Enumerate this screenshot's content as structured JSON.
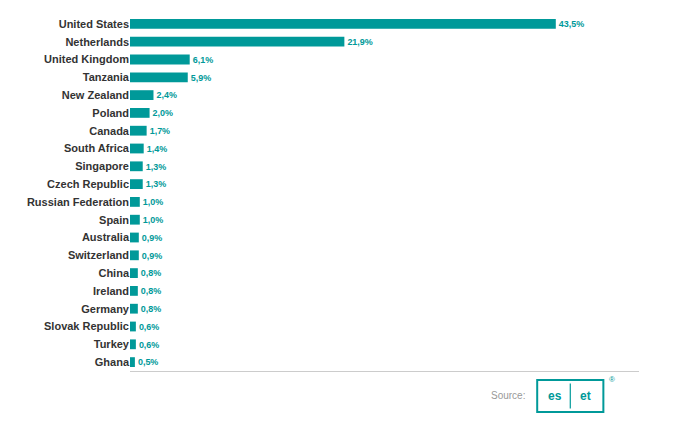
{
  "chart_data": {
    "type": "bar",
    "orientation": "horizontal",
    "categories": [
      "United States",
      "Netherlands",
      "United Kingdom",
      "Tanzania",
      "New Zealand",
      "Poland",
      "Canada",
      "South Africa",
      "Singapore",
      "Czech Republic",
      "Russian Federation",
      "Spain",
      "Australia",
      "Switzerland",
      "China",
      "Ireland",
      "Germany",
      "Slovak Republic",
      "Turkey",
      "Ghana"
    ],
    "values": [
      43.5,
      21.9,
      6.1,
      5.9,
      2.4,
      2.0,
      1.7,
      1.4,
      1.3,
      1.3,
      1.0,
      1.0,
      0.9,
      0.9,
      0.8,
      0.8,
      0.8,
      0.6,
      0.6,
      0.5
    ],
    "value_labels": [
      "43,5%",
      "21,9%",
      "6,1%",
      "5,9%",
      "2,4%",
      "2,0%",
      "1,7%",
      "1,4%",
      "1,3%",
      "1,3%",
      "1,0%",
      "1,0%",
      "0,9%",
      "0,9%",
      "0,8%",
      "0,8%",
      "0,8%",
      "0,6%",
      "0,6%",
      "0,5%"
    ],
    "color": "#009999",
    "xlim": [
      0,
      52
    ],
    "data_labels": true,
    "tick_labels": "y",
    "grid": false,
    "annotations": [
      "Source:",
      "es",
      "et",
      "®"
    ]
  }
}
